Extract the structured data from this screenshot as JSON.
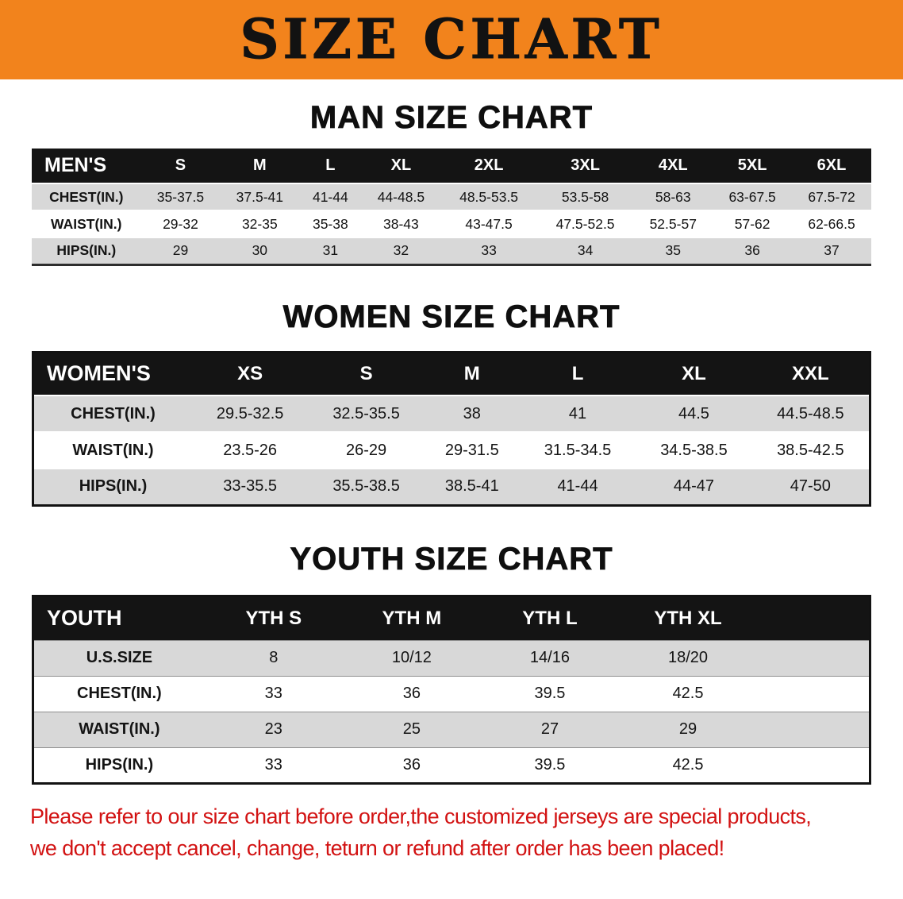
{
  "banner": {
    "title": "SIZE CHART"
  },
  "colors": {
    "banner_orange": "#F2831C",
    "header_black": "#141414",
    "row_gray": "#D8D8D8",
    "disclaimer_red": "#D21212"
  },
  "men": {
    "heading": "MAN SIZE CHART",
    "table": {
      "header": [
        "MEN'S",
        "S",
        "M",
        "L",
        "XL",
        "2XL",
        "3XL",
        "4XL",
        "5XL",
        "6XL"
      ],
      "rows": [
        [
          "CHEST(IN.)",
          "35-37.5",
          "37.5-41",
          "41-44",
          "44-48.5",
          "48.5-53.5",
          "53.5-58",
          "58-63",
          "63-67.5",
          "67.5-72"
        ],
        [
          "WAIST(IN.)",
          "29-32",
          "32-35",
          "35-38",
          "38-43",
          "43-47.5",
          "47.5-52.5",
          "52.5-57",
          "57-62",
          "62-66.5"
        ],
        [
          "HIPS(IN.)",
          "29",
          "30",
          "31",
          "32",
          "33",
          "34",
          "35",
          "36",
          "37"
        ]
      ]
    }
  },
  "women": {
    "heading": "WOMEN SIZE CHART",
    "table": {
      "header": [
        "WOMEN'S",
        "XS",
        "S",
        "M",
        "L",
        "XL",
        "XXL"
      ],
      "rows": [
        [
          "CHEST(IN.)",
          "29.5-32.5",
          "32.5-35.5",
          "38",
          "41",
          "44.5",
          "44.5-48.5"
        ],
        [
          "WAIST(IN.)",
          "23.5-26",
          "26-29",
          "29-31.5",
          "31.5-34.5",
          "34.5-38.5",
          "38.5-42.5"
        ],
        [
          "HIPS(IN.)",
          "33-35.5",
          "35.5-38.5",
          "38.5-41",
          "41-44",
          "44-47",
          "47-50"
        ]
      ]
    }
  },
  "youth": {
    "heading": "YOUTH SIZE CHART",
    "table": {
      "header": [
        "YOUTH",
        "YTH S",
        "YTH M",
        "YTH L",
        "YTH XL",
        ""
      ],
      "rows": [
        [
          "U.S.SIZE",
          "8",
          "10/12",
          "14/16",
          "18/20",
          ""
        ],
        [
          "CHEST(IN.)",
          "33",
          "36",
          "39.5",
          "42.5",
          ""
        ],
        [
          "WAIST(IN.)",
          "23",
          "25",
          "27",
          "29",
          ""
        ],
        [
          "HIPS(IN.)",
          "33",
          "36",
          "39.5",
          "42.5",
          ""
        ]
      ]
    }
  },
  "disclaimer": {
    "line1": "Please refer to our size chart before order,the customized jerseys are special products,",
    "line2": "we don't accept cancel, change, teturn or refund after order has been placed!"
  }
}
